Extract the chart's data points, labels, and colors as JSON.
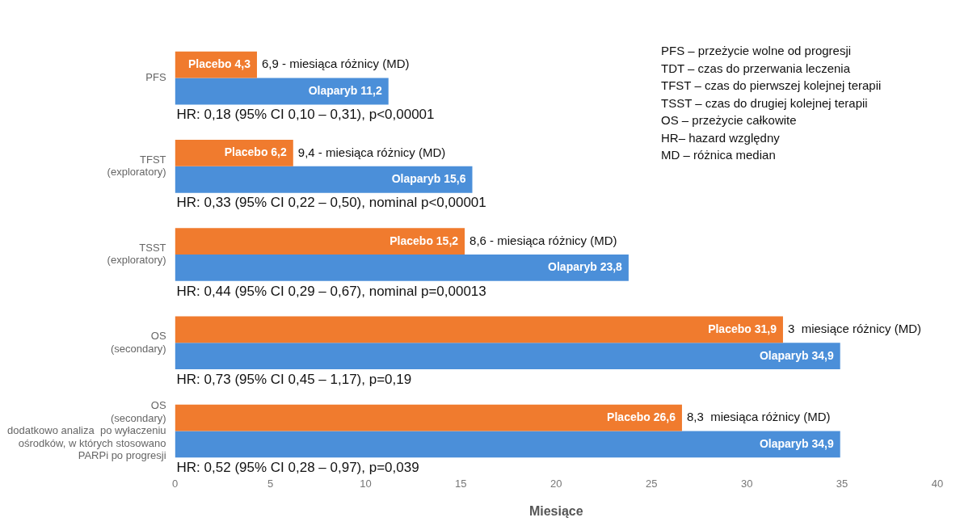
{
  "chart_data": {
    "type": "bar",
    "orientation": "horizontal",
    "xlabel": "Miesiące",
    "categories": [
      "PFS",
      "TFST\n(exploratory)",
      "TSST\n(exploratory)",
      "OS\n(secondary)",
      "OS\n(secondary)\ndodatkowo analiza  po wyłaczeniu\nośrodków, w których stosowano\nPARPi po progresji"
    ],
    "series": [
      {
        "color": "#f07b2e",
        "values": [
          4.3,
          6.2,
          15.2,
          31.9,
          26.6
        ],
        "value_labels": [
          "Placebo 4,3",
          "Placebo 6,2",
          "Placebo 15,2",
          "Placebo 31,9",
          "Placebo 26,6"
        ]
      },
      {
        "color": "#4b8fd9",
        "values": [
          11.2,
          15.6,
          23.8,
          34.9,
          34.9
        ],
        "value_labels": [
          "Olaparyb 11,2",
          "Olaparyb 15,6",
          "Olaparyb 23,8",
          "Olaparyb 34,9",
          "Olaparyb 34,9"
        ]
      }
    ],
    "xlim": [
      0,
      40
    ],
    "xticks": [
      0,
      5,
      10,
      15,
      20,
      25,
      30,
      35,
      40
    ],
    "grid": false,
    "legend": false,
    "annotations": [
      {
        "text": "6,9 - miesiąca różnicy (MD)",
        "x": 4.3,
        "y": "PFS"
      },
      {
        "text": "HR: 0,18 (95% CI 0,10 – 0,31), p<0,00001",
        "x": 0,
        "y": "PFS"
      },
      {
        "text": "9,4 - miesiąca różnicy (MD)",
        "x": 6.2,
        "y": "TFST\n(exploratory)"
      },
      {
        "text": "HR: 0,33 (95% CI 0,22 – 0,50), nominal p<0,00001",
        "x": 0,
        "y": "TFST\n(exploratory)"
      },
      {
        "text": "8,6 - miesiąca różnicy (MD)",
        "x": 15.2,
        "y": "TSST\n(exploratory)"
      },
      {
        "text": "HR: 0,44 (95% CI 0,29 – 0,67), nominal p=0,00013",
        "x": 0,
        "y": "TSST\n(exploratory)"
      },
      {
        "text": "3  miesiące różnicy (MD)",
        "x": 31.9,
        "y": "OS\n(secondary)"
      },
      {
        "text": "HR: 0,73 (95% CI 0,45 – 1,17), p=0,19",
        "x": 0,
        "y": "OS\n(secondary)"
      },
      {
        "text": "8,3  miesiąca różnicy (MD)",
        "x": 26.6,
        "y": "OS\n(secondary)\ndodatkowo analiza  po wyłaczeniu\nośrodków, w których stosowano\nPARPi po progresji"
      },
      {
        "text": "HR: 0,52 (95% CI 0,28 – 0,97), p=0,039",
        "x": 0,
        "y": "OS\n(secondary)\ndodatkowo analiza  po wyłaczeniu\nośrodków, w których stosowano\nPARPi po progresji"
      },
      "PFS – przeżycie wolne od progresji",
      "TDT – czas do przerwania leczenia",
      "TFST – czas do pierwszej kolejnej terapii",
      "TSST – czas do drugiej kolejnej terapii",
      "OS – przeżycie całkowite",
      "HR– hazard względny",
      "MD – różnica median"
    ]
  }
}
